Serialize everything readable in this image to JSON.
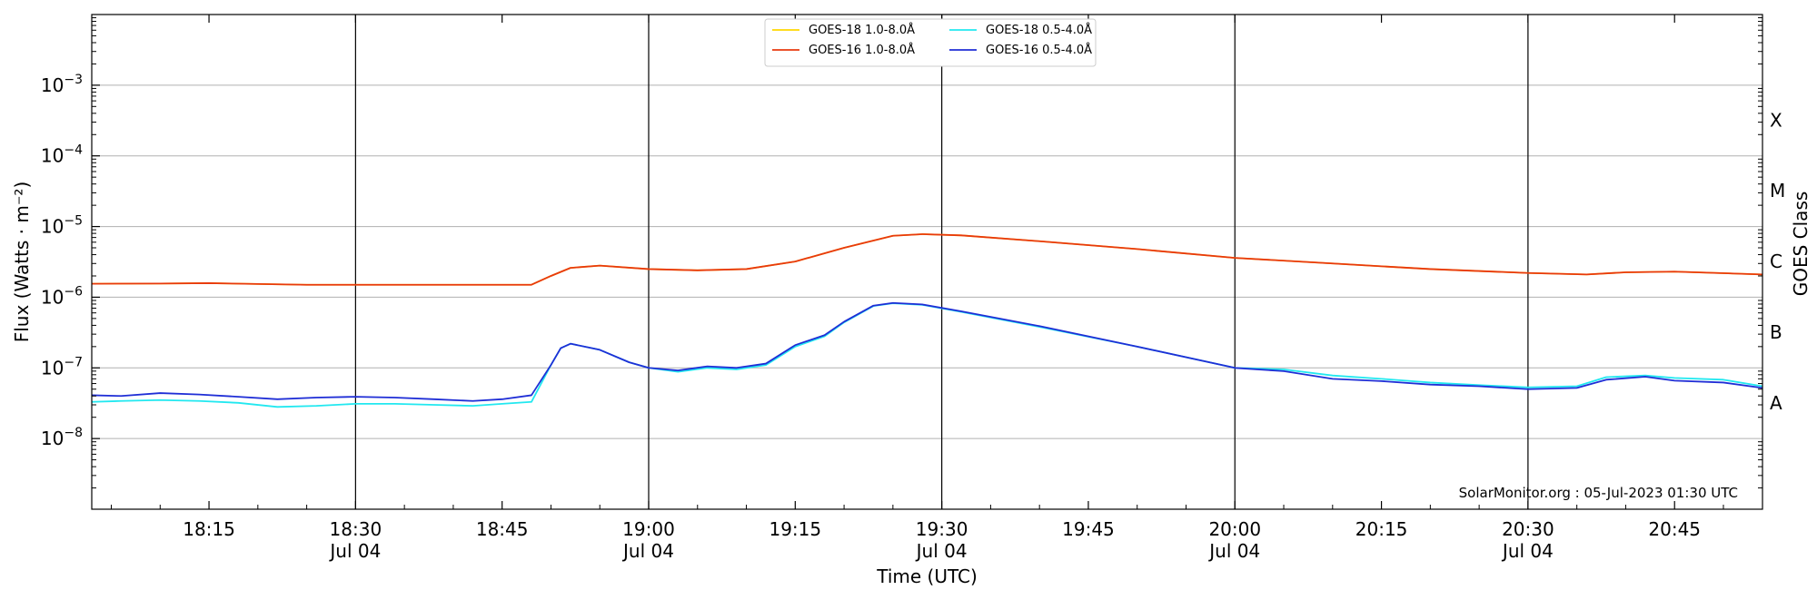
{
  "chart_data": {
    "type": "line",
    "title": "",
    "xlabel": "Time (UTC)",
    "ylabel": "Flux (Watts · m⁻²)",
    "ylabel_right": "GOES Class",
    "y_scale": "log",
    "ylim": [
      1e-09,
      0.01
    ],
    "xlim": [
      "18:03",
      "20:54"
    ],
    "grid": "horizontal",
    "legend_placement": "top-center",
    "credit": "SolarMonitor.org : 05-Jul-2023 01:30 UTC",
    "y_ticks": [
      {
        "value": 1e-08,
        "base": "10",
        "exp": "−8"
      },
      {
        "value": 1e-07,
        "base": "10",
        "exp": "−7"
      },
      {
        "value": 1e-06,
        "base": "10",
        "exp": "−6"
      },
      {
        "value": 1e-05,
        "base": "10",
        "exp": "−5"
      },
      {
        "value": 0.0001,
        "base": "10",
        "exp": "−4"
      },
      {
        "value": 0.001,
        "base": "10",
        "exp": "−3"
      }
    ],
    "x_ticks": [
      {
        "time": "18:15",
        "label": "18:15",
        "date": ""
      },
      {
        "time": "18:30",
        "label": "18:30",
        "date": "Jul 04"
      },
      {
        "time": "18:45",
        "label": "18:45",
        "date": ""
      },
      {
        "time": "19:00",
        "label": "19:00",
        "date": "Jul 04"
      },
      {
        "time": "19:15",
        "label": "19:15",
        "date": ""
      },
      {
        "time": "19:30",
        "label": "19:30",
        "date": "Jul 04"
      },
      {
        "time": "19:45",
        "label": "19:45",
        "date": ""
      },
      {
        "time": "20:00",
        "label": "20:00",
        "date": "Jul 04"
      },
      {
        "time": "20:15",
        "label": "20:15",
        "date": ""
      },
      {
        "time": "20:30",
        "label": "20:30",
        "date": "Jul 04"
      },
      {
        "time": "20:45",
        "label": "20:45",
        "date": ""
      }
    ],
    "vlines": [
      "18:30",
      "19:00",
      "19:30",
      "20:00",
      "20:30"
    ],
    "goes_classes": [
      {
        "label": "A",
        "value": 3.2e-08
      },
      {
        "label": "B",
        "value": 3.2e-07
      },
      {
        "label": "C",
        "value": 3.2e-06
      },
      {
        "label": "M",
        "value": 3.2e-05
      },
      {
        "label": "X",
        "value": 0.00032
      }
    ],
    "series": [
      {
        "name": "GOES-18 1.0-8.0Å",
        "color": "#ffd700",
        "points": [
          [
            "18:03",
            1.55e-06
          ],
          [
            "18:10",
            1.56e-06
          ],
          [
            "18:15",
            1.58e-06
          ],
          [
            "18:25",
            1.5e-06
          ],
          [
            "18:35",
            1.5e-06
          ],
          [
            "18:48",
            1.5e-06
          ],
          [
            "18:50",
            2e-06
          ],
          [
            "18:52",
            2.6e-06
          ],
          [
            "18:55",
            2.8e-06
          ],
          [
            "19:00",
            2.5e-06
          ],
          [
            "19:05",
            2.4e-06
          ],
          [
            "19:10",
            2.5e-06
          ],
          [
            "19:15",
            3.2e-06
          ],
          [
            "19:20",
            5e-06
          ],
          [
            "19:25",
            7.4e-06
          ],
          [
            "19:28",
            7.8e-06
          ],
          [
            "19:32",
            7.5e-06
          ],
          [
            "19:40",
            6.2e-06
          ],
          [
            "19:50",
            4.8e-06
          ],
          [
            "20:00",
            3.6e-06
          ],
          [
            "20:10",
            3e-06
          ],
          [
            "20:20",
            2.5e-06
          ],
          [
            "20:30",
            2.2e-06
          ],
          [
            "20:36",
            2.1e-06
          ],
          [
            "20:40",
            2.25e-06
          ],
          [
            "20:45",
            2.3e-06
          ],
          [
            "20:54",
            2.1e-06
          ]
        ]
      },
      {
        "name": "GOES-16 1.0-8.0Å",
        "color": "#e8390e",
        "points": [
          [
            "18:03",
            1.55e-06
          ],
          [
            "18:10",
            1.56e-06
          ],
          [
            "18:15",
            1.58e-06
          ],
          [
            "18:25",
            1.5e-06
          ],
          [
            "18:35",
            1.5e-06
          ],
          [
            "18:48",
            1.5e-06
          ],
          [
            "18:50",
            2e-06
          ],
          [
            "18:52",
            2.6e-06
          ],
          [
            "18:55",
            2.8e-06
          ],
          [
            "19:00",
            2.5e-06
          ],
          [
            "19:05",
            2.4e-06
          ],
          [
            "19:10",
            2.5e-06
          ],
          [
            "19:15",
            3.2e-06
          ],
          [
            "19:20",
            5e-06
          ],
          [
            "19:25",
            7.4e-06
          ],
          [
            "19:28",
            7.8e-06
          ],
          [
            "19:32",
            7.5e-06
          ],
          [
            "19:40",
            6.2e-06
          ],
          [
            "19:50",
            4.8e-06
          ],
          [
            "20:00",
            3.6e-06
          ],
          [
            "20:10",
            3e-06
          ],
          [
            "20:20",
            2.5e-06
          ],
          [
            "20:30",
            2.2e-06
          ],
          [
            "20:36",
            2.1e-06
          ],
          [
            "20:40",
            2.25e-06
          ],
          [
            "20:45",
            2.3e-06
          ],
          [
            "20:54",
            2.1e-06
          ]
        ]
      },
      {
        "name": "GOES-18 0.5-4.0Å",
        "color": "#22e8f0",
        "points": [
          [
            "18:03",
            3.3e-08
          ],
          [
            "18:06",
            3.4e-08
          ],
          [
            "18:10",
            3.5e-08
          ],
          [
            "18:14",
            3.4e-08
          ],
          [
            "18:18",
            3.2e-08
          ],
          [
            "18:22",
            2.8e-08
          ],
          [
            "18:26",
            2.9e-08
          ],
          [
            "18:30",
            3.1e-08
          ],
          [
            "18:34",
            3.1e-08
          ],
          [
            "18:38",
            3e-08
          ],
          [
            "18:42",
            2.9e-08
          ],
          [
            "18:45",
            3.1e-08
          ],
          [
            "18:48",
            3.3e-08
          ],
          [
            "18:50",
            1.1e-07
          ],
          [
            "18:51",
            1.9e-07
          ],
          [
            "18:52",
            2.2e-07
          ],
          [
            "18:55",
            1.8e-07
          ],
          [
            "18:58",
            1.2e-07
          ],
          [
            "19:00",
            1e-07
          ],
          [
            "19:03",
            8.8e-08
          ],
          [
            "19:06",
            1e-07
          ],
          [
            "19:09",
            9.5e-08
          ],
          [
            "19:12",
            1.1e-07
          ],
          [
            "19:15",
            2e-07
          ],
          [
            "19:18",
            2.8e-07
          ],
          [
            "19:20",
            4.4e-07
          ],
          [
            "19:23",
            7.5e-07
          ],
          [
            "19:25",
            8.2e-07
          ],
          [
            "19:28",
            7.8e-07
          ],
          [
            "19:32",
            6.2e-07
          ],
          [
            "19:40",
            3.8e-07
          ],
          [
            "19:50",
            2e-07
          ],
          [
            "20:00",
            1e-07
          ],
          [
            "20:05",
            9.5e-08
          ],
          [
            "20:10",
            7.8e-08
          ],
          [
            "20:15",
            7e-08
          ],
          [
            "20:20",
            6.2e-08
          ],
          [
            "20:25",
            5.7e-08
          ],
          [
            "20:30",
            5.3e-08
          ],
          [
            "20:35",
            5.5e-08
          ],
          [
            "20:38",
            7.4e-08
          ],
          [
            "20:42",
            7.8e-08
          ],
          [
            "20:45",
            7.2e-08
          ],
          [
            "20:50",
            6.8e-08
          ],
          [
            "20:54",
            5.5e-08
          ]
        ]
      },
      {
        "name": "GOES-16 0.5-4.0Å",
        "color": "#1f2ed6",
        "points": [
          [
            "18:03",
            4.1e-08
          ],
          [
            "18:06",
            4e-08
          ],
          [
            "18:10",
            4.4e-08
          ],
          [
            "18:14",
            4.2e-08
          ],
          [
            "18:18",
            3.9e-08
          ],
          [
            "18:22",
            3.6e-08
          ],
          [
            "18:26",
            3.8e-08
          ],
          [
            "18:30",
            3.9e-08
          ],
          [
            "18:34",
            3.8e-08
          ],
          [
            "18:38",
            3.6e-08
          ],
          [
            "18:42",
            3.4e-08
          ],
          [
            "18:45",
            3.6e-08
          ],
          [
            "18:48",
            4.1e-08
          ],
          [
            "18:50",
            1.1e-07
          ],
          [
            "18:51",
            1.9e-07
          ],
          [
            "18:52",
            2.2e-07
          ],
          [
            "18:55",
            1.8e-07
          ],
          [
            "18:58",
            1.2e-07
          ],
          [
            "19:00",
            1e-07
          ],
          [
            "19:03",
            9.2e-08
          ],
          [
            "19:06",
            1.05e-07
          ],
          [
            "19:09",
            1e-07
          ],
          [
            "19:12",
            1.15e-07
          ],
          [
            "19:15",
            2.1e-07
          ],
          [
            "19:18",
            2.9e-07
          ],
          [
            "19:20",
            4.5e-07
          ],
          [
            "19:23",
            7.6e-07
          ],
          [
            "19:25",
            8.3e-07
          ],
          [
            "19:28",
            7.9e-07
          ],
          [
            "19:32",
            6.3e-07
          ],
          [
            "19:40",
            3.9e-07
          ],
          [
            "19:50",
            2e-07
          ],
          [
            "20:00",
            1e-07
          ],
          [
            "20:05",
            9e-08
          ],
          [
            "20:10",
            7e-08
          ],
          [
            "20:15",
            6.5e-08
          ],
          [
            "20:20",
            5.8e-08
          ],
          [
            "20:25",
            5.5e-08
          ],
          [
            "20:30",
            5e-08
          ],
          [
            "20:35",
            5.2e-08
          ],
          [
            "20:38",
            6.8e-08
          ],
          [
            "20:42",
            7.5e-08
          ],
          [
            "20:45",
            6.6e-08
          ],
          [
            "20:50",
            6.2e-08
          ],
          [
            "20:54",
            5.2e-08
          ]
        ]
      }
    ]
  }
}
